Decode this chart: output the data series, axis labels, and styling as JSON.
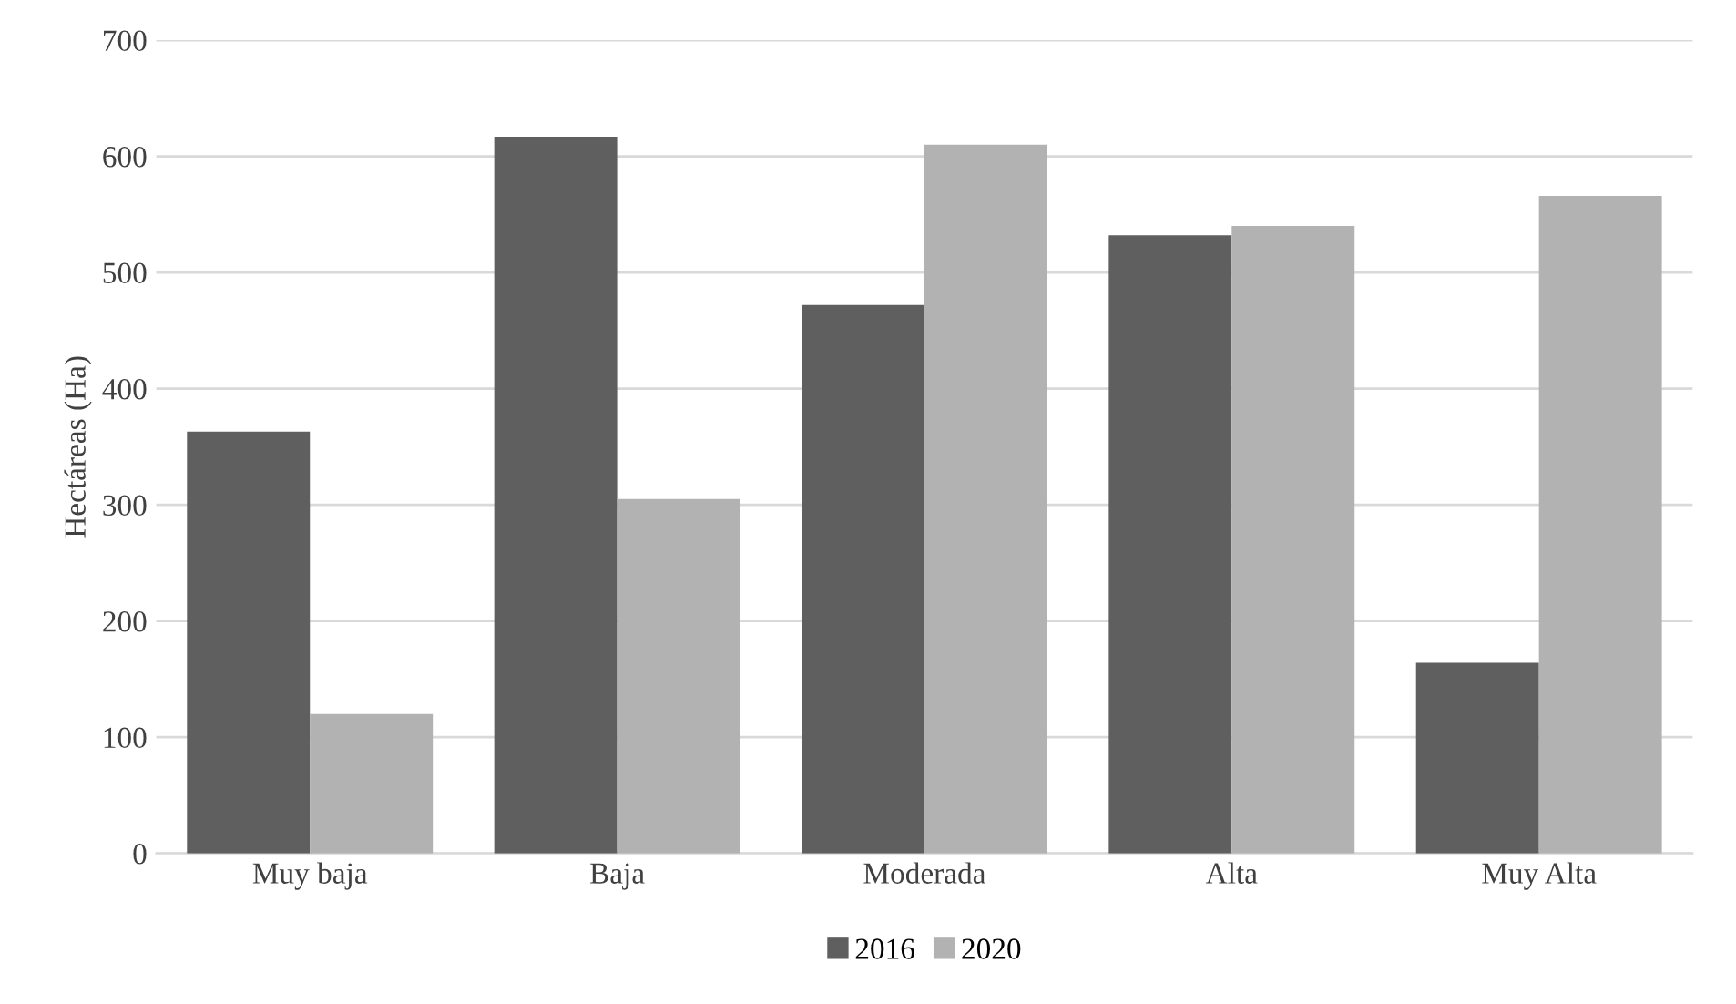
{
  "chart_data": {
    "type": "bar",
    "ylabel": "Hectáreas (Ha)",
    "categories": [
      "Muy baja",
      "Baja",
      "Moderada",
      "Alta",
      "Muy Alta"
    ],
    "series": [
      {
        "name": "2016",
        "color": "#5f5f5f",
        "values": [
          363,
          617,
          472,
          532,
          164
        ]
      },
      {
        "name": "2020",
        "color": "#b2b2b2",
        "values": [
          120,
          305,
          610,
          540,
          566
        ]
      }
    ],
    "ylim": [
      0,
      700
    ],
    "yticks": [
      0,
      100,
      200,
      300,
      400,
      500,
      600,
      700
    ],
    "grid": "y",
    "legend": "bottom"
  }
}
